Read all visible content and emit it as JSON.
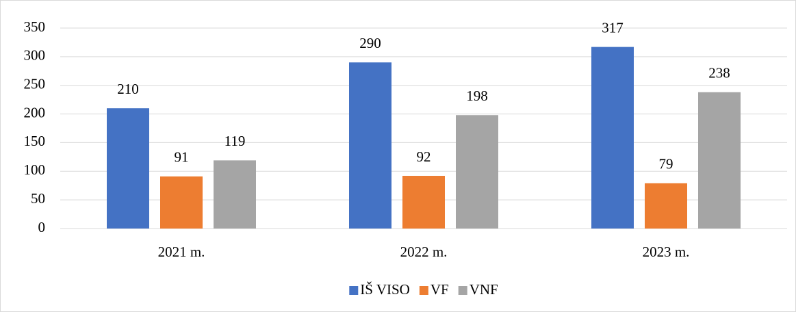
{
  "chart_data": {
    "type": "bar",
    "categories": [
      "2021 m.",
      "2022 m.",
      "2023 m."
    ],
    "series": [
      {
        "name": "IŠ VISO",
        "color": "#4472c4",
        "values": [
          210,
          290,
          317
        ]
      },
      {
        "name": "VF",
        "color": "#ed7d31",
        "values": [
          91,
          92,
          79
        ]
      },
      {
        "name": "VNF",
        "color": "#a5a5a5",
        "values": [
          119,
          198,
          238
        ]
      }
    ],
    "ylim": [
      0,
      350
    ],
    "yticks": [
      0,
      50,
      100,
      150,
      200,
      250,
      300,
      350
    ],
    "grid": true,
    "legend": "bottom"
  }
}
